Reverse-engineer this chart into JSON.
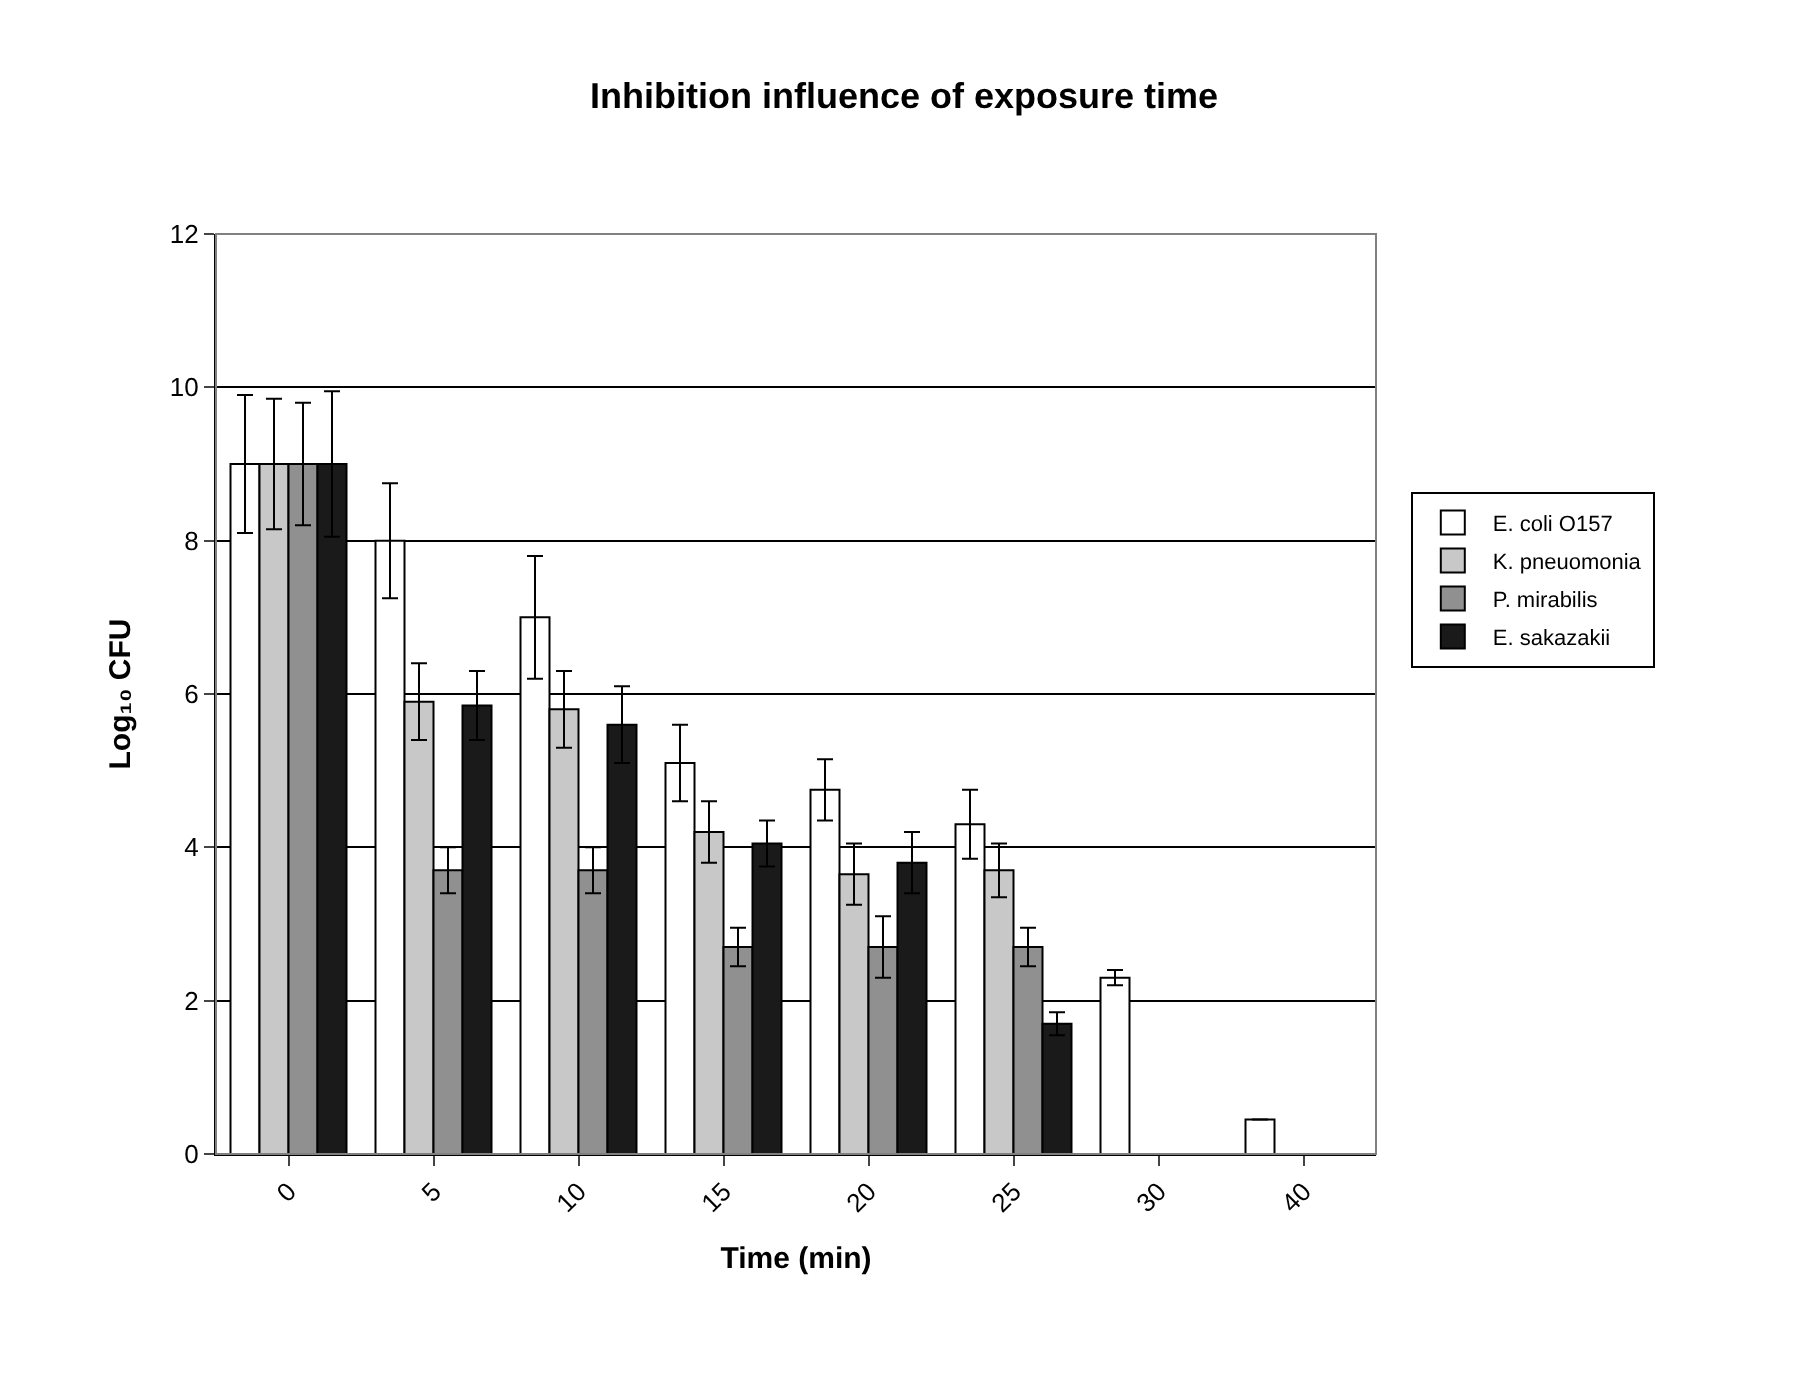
{
  "chart_data": {
    "type": "bar",
    "title": "Inhibition influence of exposure time",
    "xlabel": "Time (min)",
    "ylabel": "Log₁₀ CFU",
    "categories": [
      "0",
      "5",
      "10",
      "15",
      "20",
      "25",
      "30",
      "40"
    ],
    "series": [
      {
        "name": "E. coli O157",
        "color": "#ffffff",
        "values": [
          9,
          8,
          7,
          5.1,
          4.75,
          4.3,
          2.3,
          0.45
        ],
        "errors": [
          0.9,
          0.75,
          0.8,
          0.5,
          0.4,
          0.45,
          0.1,
          null
        ]
      },
      {
        "name": "K. pneuomonia",
        "color": "#c8c8c8",
        "values": [
          9,
          5.9,
          5.8,
          4.2,
          3.65,
          3.7,
          null,
          null
        ],
        "errors": [
          0.85,
          0.5,
          0.5,
          0.4,
          0.4,
          0.35,
          null,
          null
        ]
      },
      {
        "name": "P. mirabilis",
        "color": "#909090",
        "values": [
          9,
          3.7,
          3.7,
          2.7,
          2.7,
          2.7,
          null,
          null
        ],
        "errors": [
          0.8,
          0.3,
          0.3,
          0.25,
          0.4,
          0.25,
          null,
          null
        ]
      },
      {
        "name": "E. sakazakii",
        "color": "#1a1a1a",
        "values": [
          9,
          5.85,
          5.6,
          4.05,
          3.8,
          1.7,
          null,
          null
        ],
        "errors": [
          0.95,
          0.45,
          0.5,
          0.3,
          0.4,
          0.15,
          null,
          null
        ]
      }
    ],
    "ylim": [
      0,
      12
    ],
    "yticks": [
      0,
      2,
      4,
      6,
      8,
      10,
      12
    ],
    "grid": "y",
    "legend": "right"
  }
}
